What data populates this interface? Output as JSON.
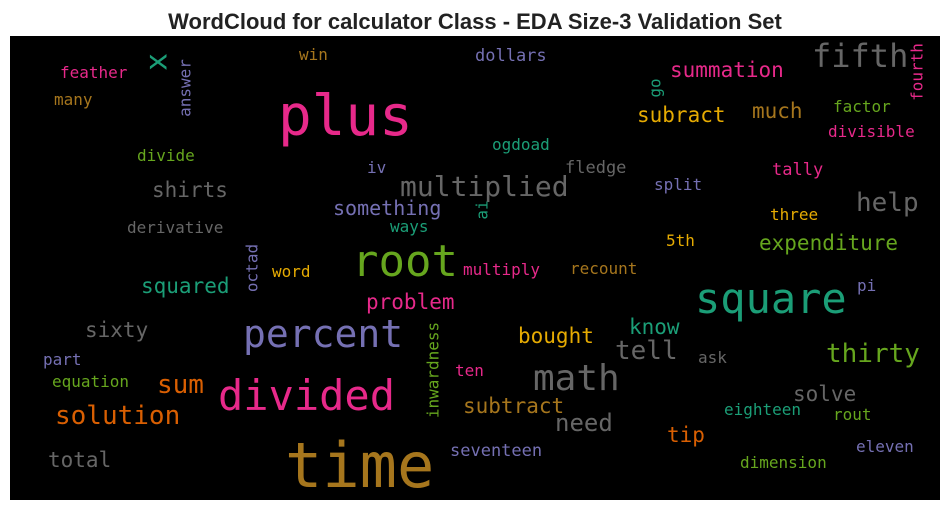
{
  "title": "WordCloud for calculator Class - EDA Size-3 Validation Set",
  "words": [
    {
      "text": "time",
      "color": "#a6761d"
    },
    {
      "text": "plus",
      "color": "#e7298a"
    },
    {
      "text": "root",
      "color": "#66a61e"
    },
    {
      "text": "square",
      "color": "#1b9e77"
    },
    {
      "text": "divided",
      "color": "#e7298a"
    },
    {
      "text": "percent",
      "color": "#7570b3"
    },
    {
      "text": "math",
      "color": "#666666"
    },
    {
      "text": "fifth",
      "color": "#666666"
    },
    {
      "text": "multiplied",
      "color": "#666666"
    },
    {
      "text": "solution",
      "color": "#d95f02"
    },
    {
      "text": "sum",
      "color": "#d95f02"
    },
    {
      "text": "tell",
      "color": "#666666"
    },
    {
      "text": "thirty",
      "color": "#66a61e"
    },
    {
      "text": "help",
      "color": "#666666"
    },
    {
      "text": "need",
      "color": "#666666"
    },
    {
      "text": "x",
      "color": "#1b9e77"
    },
    {
      "text": "summation",
      "color": "#e7298a"
    },
    {
      "text": "subract",
      "color": "#e6ab02"
    },
    {
      "text": "much",
      "color": "#a6761d"
    },
    {
      "text": "shirts",
      "color": "#666666"
    },
    {
      "text": "something",
      "color": "#7570b3"
    },
    {
      "text": "squared",
      "color": "#1b9e77"
    },
    {
      "text": "expenditure",
      "color": "#66a61e"
    },
    {
      "text": "problem",
      "color": "#e7298a"
    },
    {
      "text": "bought",
      "color": "#e6ab02"
    },
    {
      "text": "know",
      "color": "#1b9e77"
    },
    {
      "text": "sixty",
      "color": "#666666"
    },
    {
      "text": "subtract",
      "color": "#a6761d"
    },
    {
      "text": "solve",
      "color": "#666666"
    },
    {
      "text": "tip",
      "color": "#d95f02"
    },
    {
      "text": "total",
      "color": "#666666"
    },
    {
      "text": "feather",
      "color": "#e7298a"
    },
    {
      "text": "many",
      "color": "#a6761d"
    },
    {
      "text": "answer",
      "color": "#7570b3"
    },
    {
      "text": "win",
      "color": "#a6761d"
    },
    {
      "text": "dollars",
      "color": "#7570b3"
    },
    {
      "text": "go",
      "color": "#1b9e77"
    },
    {
      "text": "factor",
      "color": "#66a61e"
    },
    {
      "text": "fourth",
      "color": "#e7298a"
    },
    {
      "text": "divisible",
      "color": "#e7298a"
    },
    {
      "text": "divide",
      "color": "#66a61e"
    },
    {
      "text": "ogdoad",
      "color": "#1b9e77"
    },
    {
      "text": "iv",
      "color": "#7570b3"
    },
    {
      "text": "fledge",
      "color": "#666666"
    },
    {
      "text": "tally",
      "color": "#e7298a"
    },
    {
      "text": "split",
      "color": "#7570b3"
    },
    {
      "text": "three",
      "color": "#e6ab02"
    },
    {
      "text": "derivative",
      "color": "#666666"
    },
    {
      "text": "ways",
      "color": "#1b9e77"
    },
    {
      "text": "ai",
      "color": "#1b9e77"
    },
    {
      "text": "5th",
      "color": "#e6ab02"
    },
    {
      "text": "octad",
      "color": "#7570b3"
    },
    {
      "text": "word",
      "color": "#e6ab02"
    },
    {
      "text": "multiply",
      "color": "#e7298a"
    },
    {
      "text": "recount",
      "color": "#a6761d"
    },
    {
      "text": "pi",
      "color": "#7570b3"
    },
    {
      "text": "inwardness",
      "color": "#66a61e"
    },
    {
      "text": "part",
      "color": "#7570b3"
    },
    {
      "text": "equation",
      "color": "#66a61e"
    },
    {
      "text": "ask",
      "color": "#666666"
    },
    {
      "text": "ten",
      "color": "#e7298a"
    },
    {
      "text": "eighteen",
      "color": "#1b9e77"
    },
    {
      "text": "rout",
      "color": "#66a61e"
    },
    {
      "text": "seventeen",
      "color": "#7570b3"
    },
    {
      "text": "eleven",
      "color": "#7570b3"
    },
    {
      "text": "dimension",
      "color": "#66a61e"
    }
  ]
}
